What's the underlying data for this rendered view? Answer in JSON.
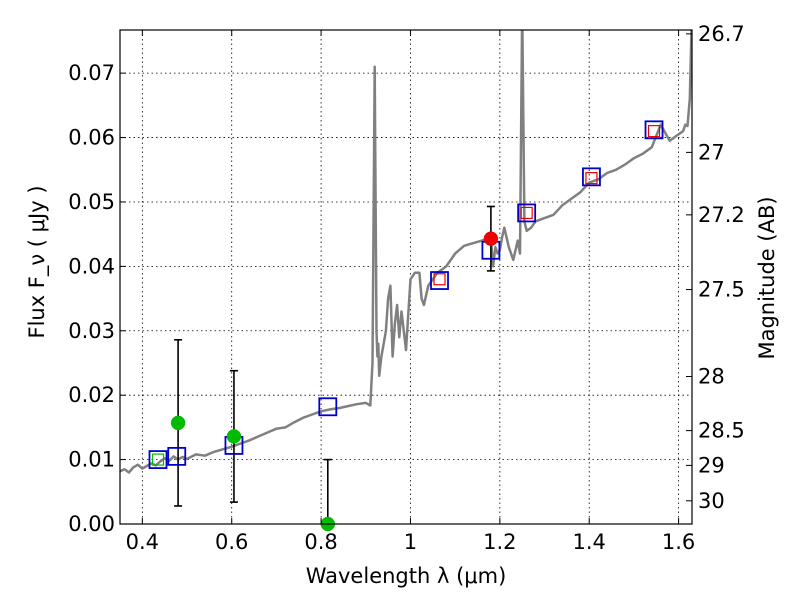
{
  "chart_data": {
    "type": "scatter",
    "xlabel": "Wavelength  λ (μm)",
    "ylabel_left": "Flux  F_ν  ( μJy )",
    "ylabel_right": "Magnitude (AB)",
    "xlim": [
      0.35,
      1.63
    ],
    "ylim": [
      0.0,
      0.0767
    ],
    "x_ticks": [
      0.4,
      0.6,
      0.8,
      1.0,
      1.2,
      1.4,
      1.6
    ],
    "x_tick_labels": [
      "0.4",
      "0.6",
      "0.8",
      "1",
      "1.2",
      "1.4",
      "1.6"
    ],
    "y_ticks": [
      0.0,
      0.01,
      0.02,
      0.03,
      0.04,
      0.05,
      0.06,
      0.07
    ],
    "y_tick_labels": [
      "0.00",
      "0.01",
      "0.02",
      "0.03",
      "0.04",
      "0.05",
      "0.06",
      "0.07"
    ],
    "right_ticks": [
      {
        "label": "26.7",
        "flux": 0.0761
      },
      {
        "label": "27",
        "flux": 0.0577
      },
      {
        "label": "27.2",
        "flux": 0.048
      },
      {
        "label": "27.5",
        "flux": 0.0364
      },
      {
        "label": "28",
        "flux": 0.0229
      },
      {
        "label": "28.5",
        "flux": 0.0145
      },
      {
        "label": "29",
        "flux": 0.0091
      },
      {
        "label": "30",
        "flux": 0.0036
      }
    ],
    "grid": true,
    "colors": {
      "model_sed": "#808080",
      "model_photometry": "#0000cc",
      "optical_detections": "#00bb00",
      "nir_detections": "#ee0000",
      "error_bars": "#000000"
    },
    "series": [
      {
        "name": "model SED",
        "kind": "line",
        "x": [
          0.35,
          0.36,
          0.37,
          0.38,
          0.39,
          0.4,
          0.41,
          0.42,
          0.43,
          0.44,
          0.45,
          0.46,
          0.47,
          0.48,
          0.49,
          0.5,
          0.52,
          0.54,
          0.56,
          0.58,
          0.6,
          0.62,
          0.64,
          0.66,
          0.68,
          0.7,
          0.72,
          0.74,
          0.76,
          0.78,
          0.8,
          0.82,
          0.84,
          0.86,
          0.88,
          0.9,
          0.91,
          0.915,
          0.92,
          0.922,
          0.924,
          0.926,
          0.928,
          0.93,
          0.935,
          0.94,
          0.945,
          0.95,
          0.955,
          0.96,
          0.965,
          0.97,
          0.975,
          0.98,
          0.985,
          0.99,
          1.0,
          1.01,
          1.02,
          1.025,
          1.03,
          1.035,
          1.04,
          1.05,
          1.06,
          1.07,
          1.08,
          1.1,
          1.12,
          1.14,
          1.16,
          1.18,
          1.185,
          1.19,
          1.195,
          1.2,
          1.205,
          1.21,
          1.22,
          1.23,
          1.24,
          1.245,
          1.25,
          1.255,
          1.26,
          1.27,
          1.28,
          1.3,
          1.32,
          1.34,
          1.36,
          1.38,
          1.4,
          1.42,
          1.44,
          1.46,
          1.48,
          1.5,
          1.52,
          1.54,
          1.56,
          1.58,
          1.6,
          1.61,
          1.615,
          1.62,
          1.625,
          1.63
        ],
        "y": [
          0.0082,
          0.0085,
          0.008,
          0.0088,
          0.0092,
          0.0086,
          0.009,
          0.0094,
          0.0091,
          0.0097,
          0.0102,
          0.0098,
          0.0105,
          0.01,
          0.0104,
          0.0101,
          0.0108,
          0.0106,
          0.0112,
          0.0116,
          0.012,
          0.0125,
          0.013,
          0.0136,
          0.0142,
          0.0148,
          0.015,
          0.0158,
          0.0165,
          0.017,
          0.0175,
          0.0178,
          0.018,
          0.0183,
          0.0186,
          0.0188,
          0.0184,
          0.025,
          0.071,
          0.05,
          0.03,
          0.026,
          0.028,
          0.023,
          0.026,
          0.028,
          0.03,
          0.035,
          0.037,
          0.026,
          0.031,
          0.034,
          0.029,
          0.033,
          0.03,
          0.027,
          0.038,
          0.039,
          0.039,
          0.035,
          0.034,
          0.0355,
          0.037,
          0.038,
          0.039,
          0.0395,
          0.04,
          0.042,
          0.0432,
          0.0436,
          0.044,
          0.0445,
          0.04,
          0.043,
          0.042,
          0.0425,
          0.0445,
          0.046,
          0.043,
          0.041,
          0.044,
          0.042,
          0.08,
          0.047,
          0.0455,
          0.046,
          0.047,
          0.0475,
          0.048,
          0.0495,
          0.0505,
          0.0515,
          0.053,
          0.0535,
          0.0545,
          0.055,
          0.0558,
          0.0568,
          0.0575,
          0.0585,
          0.062,
          0.0595,
          0.0605,
          0.061,
          0.062,
          0.0618,
          0.066,
          0.08
        ]
      },
      {
        "name": "model photometry",
        "kind": "open-square",
        "x": [
          0.435,
          0.477,
          0.605,
          0.815,
          1.065,
          1.18,
          1.26,
          1.405,
          1.545
        ],
        "y": [
          0.01,
          0.0105,
          0.0122,
          0.0182,
          0.0378,
          0.0425,
          0.0483,
          0.0539,
          0.0612
        ]
      },
      {
        "name": "optical detections",
        "kind": "filled-circle",
        "x": [
          0.48,
          0.605,
          0.815
        ],
        "y": [
          0.0157,
          0.0136,
          0.0
        ],
        "yerr_low": [
          0.0129,
          0.0102,
          0.0
        ],
        "yerr_high": [
          0.0129,
          0.0102,
          0.01
        ]
      },
      {
        "name": "optical detection (inner mark)",
        "kind": "small-open-square",
        "x": [
          0.435
        ],
        "y": [
          0.01
        ]
      },
      {
        "name": "NIR detections",
        "kind": "small-open-square",
        "x": [
          1.065,
          1.26,
          1.405,
          1.545
        ],
        "y": [
          0.038,
          0.0483,
          0.0537,
          0.061
        ]
      },
      {
        "name": "NIR detection (filled)",
        "kind": "filled-circle",
        "x": [
          1.18
        ],
        "y": [
          0.0443
        ],
        "yerr_low": [
          0.005
        ],
        "yerr_high": [
          0.005
        ]
      }
    ]
  }
}
